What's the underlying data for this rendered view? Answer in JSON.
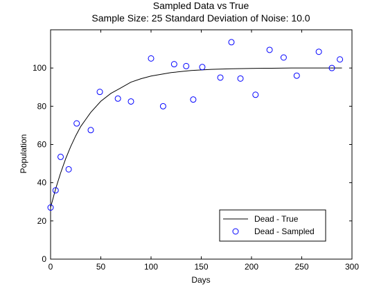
{
  "chart_data": {
    "type": "scatter",
    "title": "Sampled Data vs True",
    "subtitle": "Sample Size: 25   Standard Deviation of Noise: 10.0",
    "xlabel": "Days",
    "ylabel": "Population",
    "xlim": [
      0,
      300
    ],
    "ylim": [
      0,
      120
    ],
    "xticks": [
      0,
      50,
      100,
      150,
      200,
      250,
      300
    ],
    "yticks": [
      0,
      20,
      40,
      60,
      80,
      100
    ],
    "grid": false,
    "legend_position": "bottom-right",
    "series": [
      {
        "name": "Dead - True",
        "kind": "line",
        "color": "#000000",
        "model": "y = 100 - 73 * exp(-x / 35)",
        "x": [
          0,
          5,
          10,
          15,
          20,
          25,
          30,
          35,
          40,
          50,
          60,
          70,
          80,
          90,
          100,
          120,
          140,
          160,
          180,
          200,
          220,
          240,
          260,
          280,
          290
        ],
        "y": [
          27,
          36.7,
          45.1,
          52.5,
          58.9,
          64.5,
          69.4,
          73.1,
          76.8,
          82.6,
          86.7,
          89.6,
          92.6,
          94.4,
          95.8,
          97.6,
          98.7,
          99.3,
          99.6,
          99.8,
          99.9,
          100,
          100,
          100,
          100
        ]
      },
      {
        "name": "Dead - Sampled",
        "kind": "scatter",
        "marker": "circle",
        "color": "#0000ff",
        "x": [
          0,
          5,
          10,
          18,
          26,
          40,
          49,
          67,
          80,
          100,
          112,
          123,
          135,
          142,
          151,
          169,
          180,
          189,
          204,
          218,
          232,
          245,
          267,
          280,
          288
        ],
        "y": [
          27,
          36,
          53.5,
          47,
          71,
          67.5,
          87.5,
          84,
          82.5,
          105,
          80,
          102,
          101,
          83.5,
          100.5,
          95,
          113.5,
          94.5,
          86,
          109.5,
          105.5,
          96,
          108.5,
          100,
          104.5
        ]
      }
    ]
  }
}
